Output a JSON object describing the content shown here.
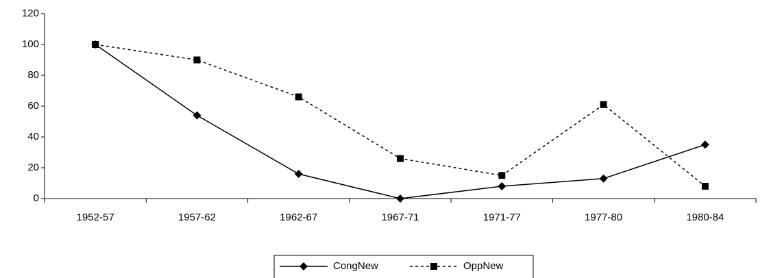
{
  "chart_data": {
    "type": "line",
    "categories": [
      "1952-57",
      "1957-62",
      "1962-67",
      "1967-71",
      "1971-77",
      "1977-80",
      "1980-84"
    ],
    "series": [
      {
        "name": "CongNew",
        "color": "#000000",
        "dash": "solid",
        "marker": "diamond",
        "values": [
          100,
          54,
          16,
          0,
          8,
          13,
          35
        ]
      },
      {
        "name": "OppNew",
        "color": "#000000",
        "dash": "dashed",
        "marker": "square",
        "values": [
          100,
          90,
          66,
          26,
          15,
          61,
          8
        ]
      }
    ],
    "ylim": [
      0,
      120
    ],
    "yticks": [
      0,
      20,
      40,
      60,
      80,
      100,
      120
    ],
    "grid": false,
    "legend": "bottom"
  }
}
